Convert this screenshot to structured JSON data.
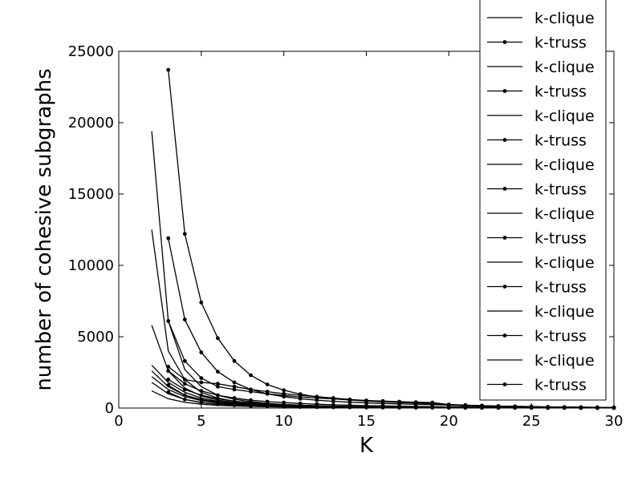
{
  "chart_data": {
    "type": "line",
    "title": "",
    "xlabel": "K",
    "ylabel": "number of cohesive subgraphs",
    "xlim": [
      0,
      30
    ],
    "ylim": [
      0,
      25000
    ],
    "xticks": [
      "0",
      "5",
      "10",
      "15",
      "20",
      "25",
      "30"
    ],
    "yticks": [
      "0",
      "5000",
      "10000",
      "15000",
      "20000",
      "25000"
    ],
    "grid": false,
    "legend_position": "top-right",
    "line_color": "#000000",
    "series": [
      {
        "name": "k-clique",
        "marker": "none",
        "x": [
          2,
          3,
          4,
          5,
          6,
          7,
          8,
          9,
          10,
          11,
          12,
          13,
          14,
          15,
          16,
          17,
          18,
          19,
          20,
          21,
          22,
          23,
          24,
          25,
          26,
          27,
          28,
          29,
          30
        ],
        "y": [
          19400,
          6100,
          2700,
          1500,
          900,
          620,
          450,
          330,
          250,
          200,
          160,
          130,
          110,
          95,
          80,
          70,
          60,
          50,
          45,
          40,
          35,
          30,
          28,
          25,
          22,
          20,
          18,
          15,
          12
        ]
      },
      {
        "name": "k-truss",
        "marker": "dot",
        "x": [
          3,
          4,
          5,
          6,
          7,
          8,
          9,
          10,
          11,
          12,
          13,
          14,
          15,
          16,
          17,
          18,
          19,
          20,
          21,
          22,
          23,
          24,
          25,
          26,
          27,
          28,
          29,
          30
        ],
        "y": [
          23700,
          12200,
          7400,
          4900,
          3300,
          2300,
          1650,
          1250,
          980,
          780,
          650,
          560,
          490,
          440,
          400,
          360,
          320,
          200,
          150,
          130,
          110,
          90,
          80,
          70,
          60,
          50,
          40,
          30
        ]
      },
      {
        "name": "k-clique",
        "marker": "none",
        "x": [
          2,
          3,
          4,
          5,
          6,
          7,
          8,
          9,
          10,
          11,
          12,
          13,
          14,
          15,
          16,
          17,
          18,
          19,
          20,
          21,
          22,
          23,
          24,
          25,
          26,
          27,
          28,
          29,
          30
        ],
        "y": [
          12500,
          4000,
          2000,
          1100,
          700,
          480,
          350,
          260,
          200,
          160,
          130,
          110,
          95,
          80,
          70,
          60,
          55,
          50,
          45,
          40,
          35,
          30,
          28,
          25,
          22,
          20,
          18,
          15,
          12
        ]
      },
      {
        "name": "k-truss",
        "marker": "dot",
        "x": [
          3,
          4,
          5,
          6,
          7,
          8,
          9,
          10,
          11,
          12,
          13,
          14,
          15,
          16,
          17,
          18,
          19,
          20,
          21,
          22,
          23,
          24,
          25,
          26,
          27,
          28,
          29,
          30
        ],
        "y": [
          11900,
          6200,
          3900,
          2550,
          1800,
          1300,
          1000,
          800,
          650,
          550,
          470,
          410,
          360,
          320,
          290,
          260,
          240,
          200,
          160,
          140,
          120,
          100,
          85,
          70,
          60,
          50,
          40,
          30
        ]
      },
      {
        "name": "k-clique",
        "marker": "none",
        "x": [
          2,
          3,
          4,
          5,
          6,
          7,
          8,
          9,
          10,
          11,
          12,
          13,
          14,
          15,
          16,
          17,
          18,
          19,
          20,
          21,
          22,
          23,
          24,
          25,
          26,
          27,
          28,
          29,
          30
        ],
        "y": [
          5800,
          2600,
          1400,
          850,
          560,
          400,
          300,
          230,
          180,
          150,
          125,
          105,
          90,
          80,
          70,
          60,
          55,
          50,
          45,
          40,
          35,
          30,
          28,
          25,
          22,
          20,
          18,
          15,
          12
        ]
      },
      {
        "name": "k-truss",
        "marker": "dot",
        "x": [
          3,
          4,
          5,
          6,
          7,
          8,
          9,
          10,
          11,
          12,
          13,
          14,
          15,
          16,
          17,
          18,
          19,
          20,
          21,
          22,
          23,
          24,
          25,
          26,
          27,
          28,
          29,
          30
        ],
        "y": [
          6100,
          3300,
          2100,
          1500,
          1300,
          1150,
          1000,
          880,
          780,
          700,
          640,
          580,
          530,
          490,
          450,
          410,
          380,
          250,
          200,
          170,
          140,
          120,
          100,
          80,
          70,
          60,
          50,
          40
        ]
      },
      {
        "name": "k-clique",
        "marker": "none",
        "x": [
          2,
          3,
          4,
          5,
          6,
          7,
          8,
          9,
          10,
          11,
          12,
          13,
          14,
          15,
          16,
          17,
          18,
          19,
          20,
          21,
          22,
          23,
          24,
          25,
          26,
          27,
          28,
          29,
          30
        ],
        "y": [
          3000,
          1800,
          1100,
          700,
          480,
          350,
          270,
          210,
          170,
          140,
          115,
          100,
          85,
          75,
          65,
          58,
          52,
          47,
          42,
          38,
          34,
          30,
          27,
          24,
          21,
          18,
          16,
          14,
          12
        ]
      },
      {
        "name": "k-truss",
        "marker": "dot",
        "x": [
          3,
          4,
          5,
          6,
          7,
          8,
          9,
          10,
          11,
          12,
          13,
          14,
          15,
          16,
          17,
          18,
          19,
          20,
          21,
          22,
          23,
          24,
          25,
          26,
          27,
          28,
          29,
          30
        ],
        "y": [
          2900,
          2000,
          1800,
          1700,
          1500,
          1300,
          1150,
          1000,
          900,
          800,
          700,
          600,
          520,
          450,
          390,
          340,
          300,
          250,
          200,
          170,
          140,
          120,
          100,
          80,
          70,
          60,
          50,
          40
        ]
      },
      {
        "name": "k-clique",
        "marker": "none",
        "x": [
          2,
          3,
          4,
          5,
          6,
          7,
          8,
          9,
          10,
          11,
          12,
          13,
          14,
          15,
          16,
          17,
          18,
          19,
          20,
          21,
          22,
          23,
          24,
          25,
          26,
          27,
          28,
          29,
          30
        ],
        "y": [
          2600,
          1500,
          900,
          580,
          400,
          300,
          230,
          180,
          145,
          120,
          100,
          85,
          75,
          65,
          57,
          50,
          45,
          40,
          36,
          32,
          28,
          25,
          22,
          20,
          18,
          16,
          14,
          12,
          10
        ]
      },
      {
        "name": "k-truss",
        "marker": "dot",
        "x": [
          3,
          4,
          5,
          6,
          7,
          8,
          9,
          10,
          11,
          12,
          13,
          14,
          15,
          16,
          17,
          18,
          19,
          20,
          21,
          22,
          23,
          24,
          25,
          26,
          27,
          28,
          29,
          30
        ],
        "y": [
          2600,
          1700,
          1200,
          900,
          700,
          550,
          450,
          380,
          320,
          270,
          230,
          200,
          170,
          150,
          130,
          110,
          95,
          80,
          70,
          60,
          50,
          45,
          40,
          35,
          30,
          25,
          20,
          15
        ]
      },
      {
        "name": "k-clique",
        "marker": "none",
        "x": [
          2,
          3,
          4,
          5,
          6,
          7,
          8,
          9,
          10,
          11,
          12,
          13,
          14,
          15,
          16,
          17,
          18,
          19,
          20,
          21,
          22,
          23,
          24,
          25,
          26,
          27,
          28,
          29,
          30
        ],
        "y": [
          2200,
          1300,
          800,
          520,
          360,
          270,
          210,
          165,
          130,
          105,
          88,
          75,
          65,
          57,
          50,
          44,
          40,
          36,
          32,
          28,
          25,
          22,
          20,
          18,
          16,
          14,
          12,
          10,
          8
        ]
      },
      {
        "name": "k-truss",
        "marker": "dot",
        "x": [
          3,
          4,
          5,
          6,
          7,
          8,
          9,
          10,
          11,
          12,
          13,
          14,
          15,
          16,
          17,
          18,
          19,
          20,
          21,
          22,
          23,
          24,
          25,
          26,
          27,
          28,
          29,
          30
        ],
        "y": [
          2000,
          1300,
          900,
          650,
          480,
          380,
          300,
          240,
          200,
          165,
          140,
          120,
          100,
          85,
          72,
          62,
          54,
          46,
          40,
          35,
          30,
          26,
          22,
          19,
          16,
          13,
          10,
          8
        ]
      },
      {
        "name": "k-clique",
        "marker": "none",
        "x": [
          2,
          3,
          4,
          5,
          6,
          7,
          8,
          9,
          10,
          11,
          12,
          13,
          14,
          15,
          16,
          17,
          18,
          19,
          20,
          21,
          22,
          23,
          24,
          25,
          26,
          27,
          28,
          29,
          30
        ],
        "y": [
          1800,
          1000,
          600,
          400,
          280,
          210,
          160,
          125,
          100,
          82,
          68,
          58,
          50,
          44,
          38,
          34,
          30,
          27,
          24,
          21,
          19,
          17,
          15,
          13,
          11,
          10,
          9,
          8,
          7
        ]
      },
      {
        "name": "k-truss",
        "marker": "dot",
        "x": [
          3,
          4,
          5,
          6,
          7,
          8,
          9,
          10,
          11,
          12,
          13,
          14,
          15,
          16,
          17,
          18,
          19,
          20,
          21,
          22,
          23,
          24,
          25,
          26,
          27,
          28,
          29,
          30
        ],
        "y": [
          1600,
          900,
          600,
          430,
          320,
          250,
          200,
          165,
          135,
          112,
          95,
          80,
          68,
          58,
          50,
          43,
          37,
          32,
          28,
          24,
          21,
          18,
          15,
          13,
          11,
          9,
          7,
          6
        ]
      },
      {
        "name": "k-clique",
        "marker": "none",
        "x": [
          2,
          3,
          4,
          5,
          6,
          7,
          8,
          9,
          10,
          11,
          12,
          13,
          14,
          15,
          16,
          17,
          18,
          19,
          20,
          21,
          22,
          23,
          24,
          25,
          26,
          27,
          28,
          29,
          30
        ],
        "y": [
          1200,
          650,
          400,
          270,
          190,
          145,
          112,
          90,
          74,
          62,
          52,
          45,
          39,
          34,
          30,
          26,
          23,
          20,
          18,
          16,
          14,
          12,
          11,
          10,
          9,
          8,
          7,
          6,
          5
        ]
      },
      {
        "name": "k-truss",
        "marker": "dot",
        "x": [
          3,
          4,
          5,
          6,
          7,
          8,
          9,
          10,
          11,
          12,
          13,
          14,
          15,
          16,
          17,
          18,
          19,
          20,
          21,
          22,
          23,
          24,
          25,
          26,
          27,
          28,
          29,
          30
        ],
        "y": [
          1100,
          600,
          380,
          260,
          190,
          145,
          115,
          92,
          75,
          62,
          52,
          44,
          38,
          33,
          28,
          24,
          21,
          18,
          16,
          14,
          12,
          10,
          9,
          8,
          7,
          6,
          5,
          4
        ]
      }
    ]
  }
}
